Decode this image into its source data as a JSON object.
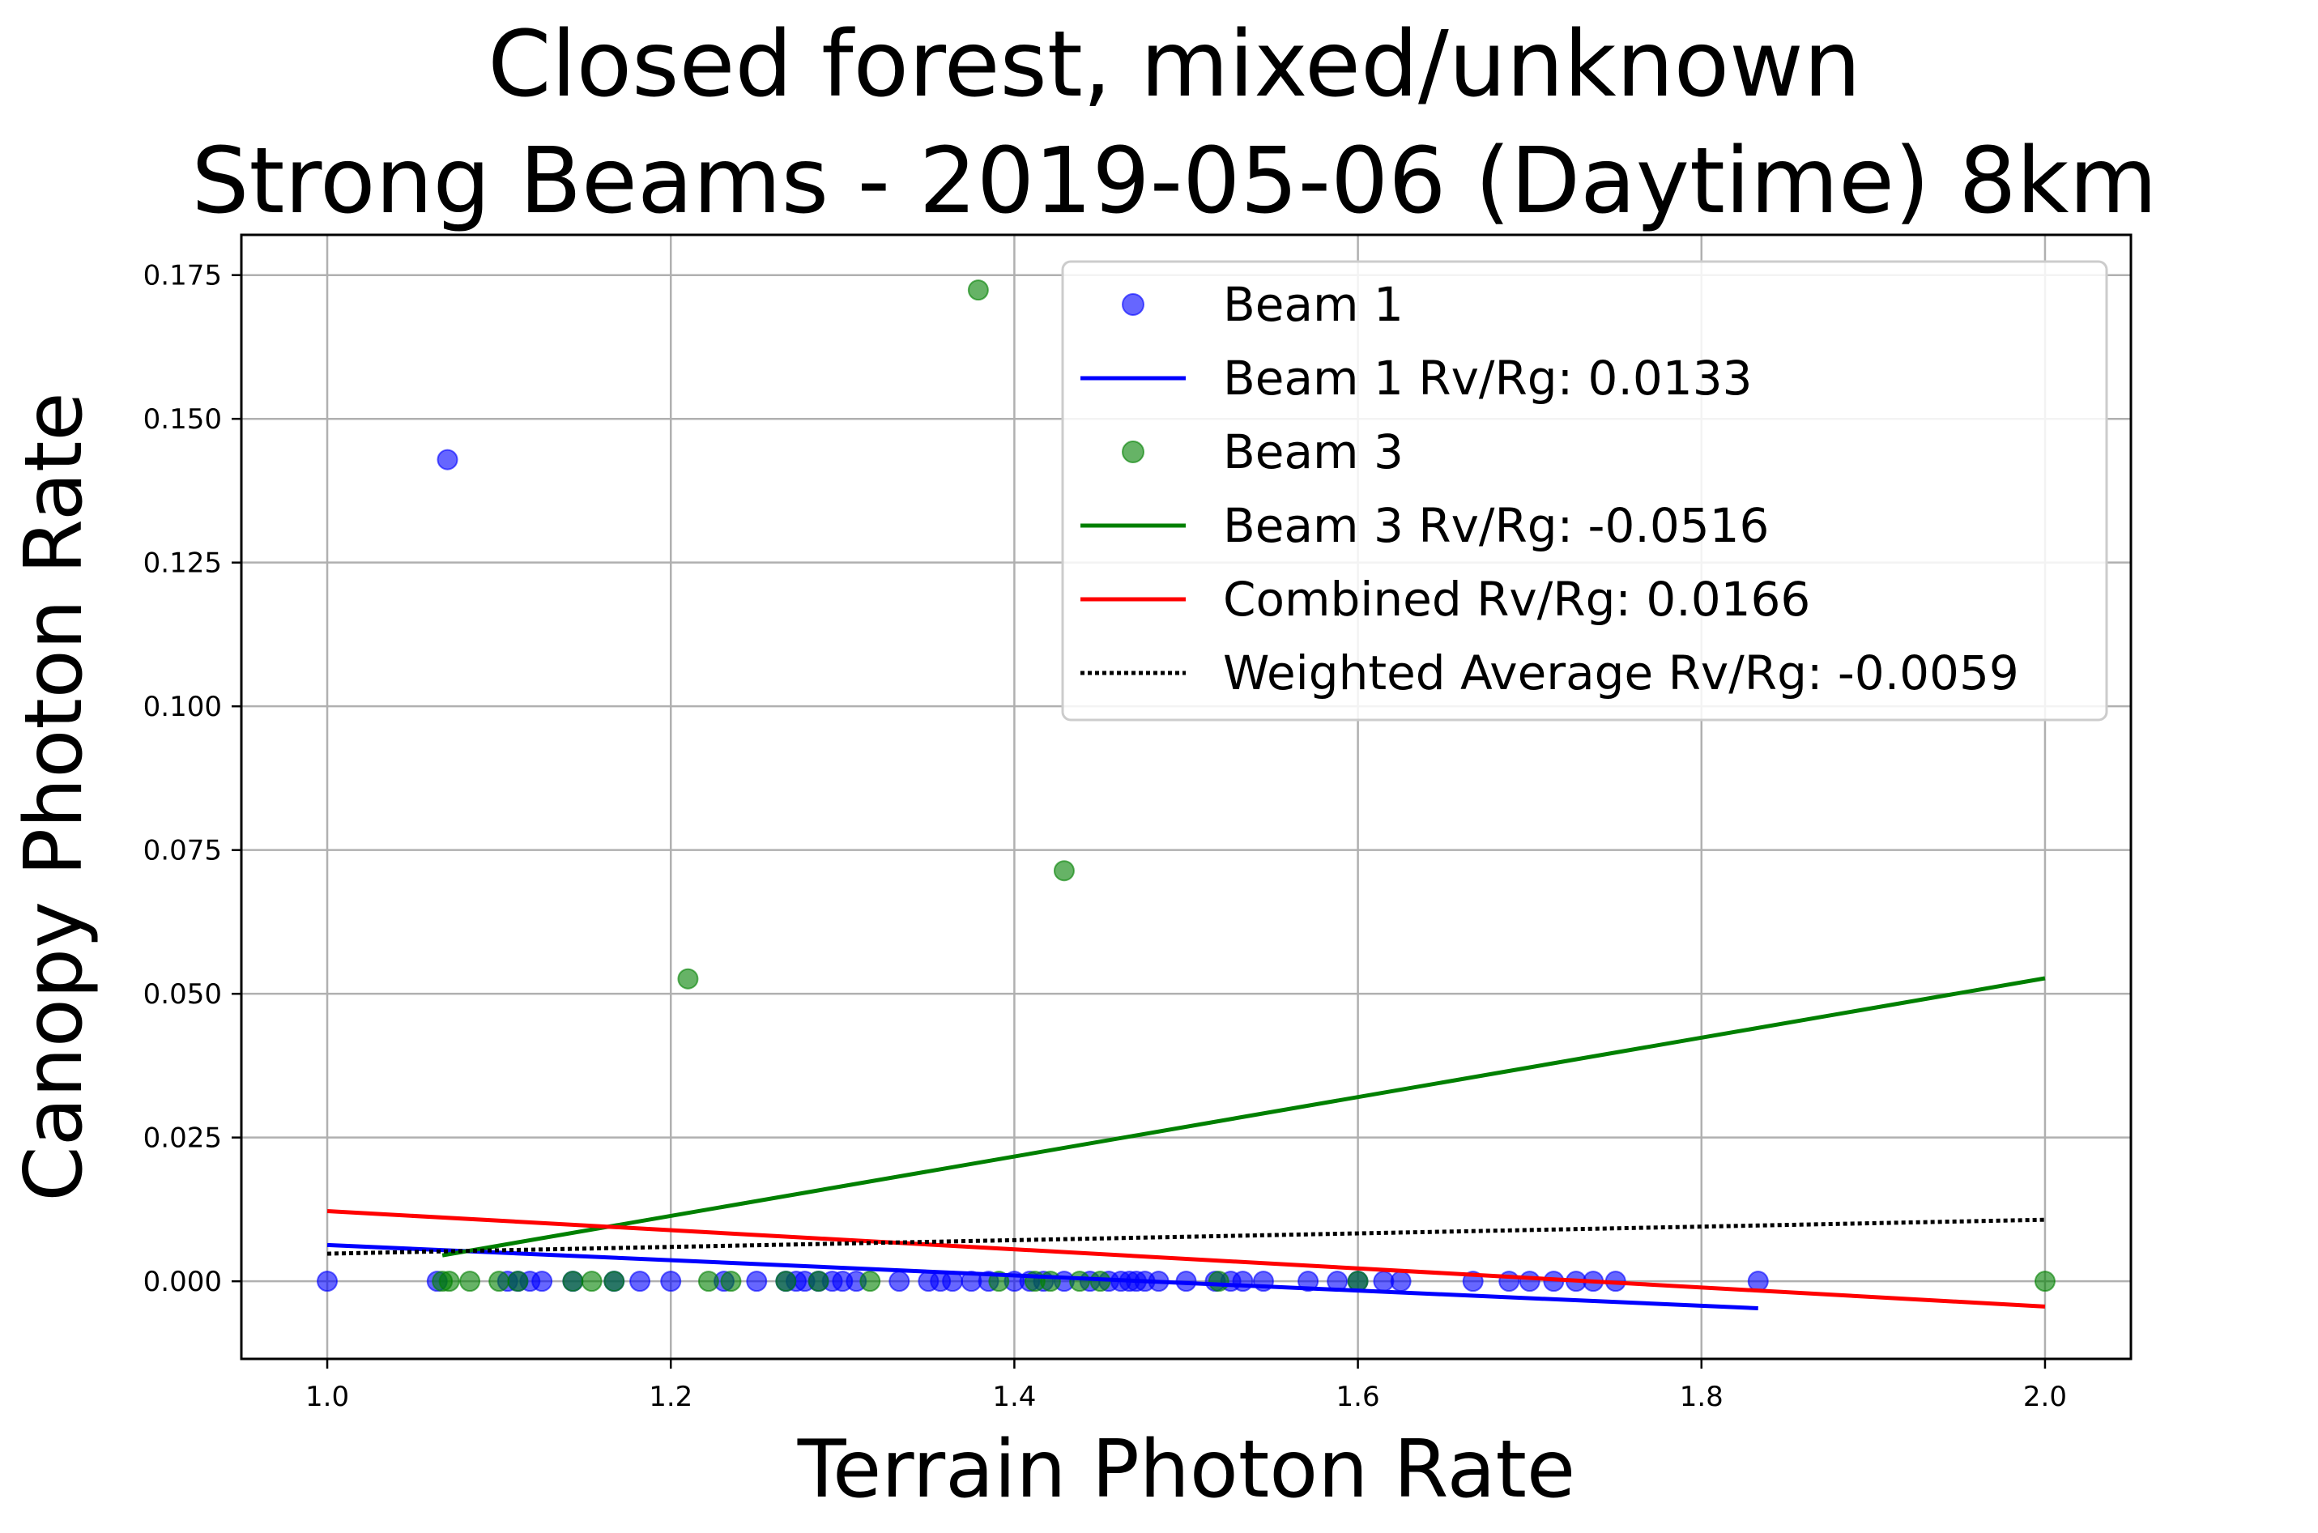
{
  "chart_data": {
    "type": "scatter",
    "title_lines": [
      "Closed forest, mixed/unknown",
      "Strong Beams - 2019-05-06 (Daytime) 8km"
    ],
    "xlabel": "Terrain Photon Rate",
    "ylabel": "Canopy Photon Rate",
    "xlim": [
      0.95,
      2.05
    ],
    "ylim": [
      -0.0135,
      0.182
    ],
    "xticks": [
      1.0,
      1.2,
      1.4,
      1.6,
      1.8,
      2.0
    ],
    "xtick_labels": [
      "1.0",
      "1.2",
      "1.4",
      "1.6",
      "1.8",
      "2.0"
    ],
    "yticks": [
      0.0,
      0.025,
      0.05,
      0.075,
      0.1,
      0.125,
      0.15,
      0.175
    ],
    "ytick_labels": [
      "0.000",
      "0.025",
      "0.050",
      "0.075",
      "0.100",
      "0.125",
      "0.150",
      "0.175"
    ],
    "grid": true,
    "legend_position": "top-right",
    "series": [
      {
        "kind": "scatter",
        "name": "Beam 1",
        "color": "#0000ff",
        "points": [
          [
            1.0,
            0.0
          ],
          [
            1.064,
            0.0
          ],
          [
            1.07,
            0.1429
          ],
          [
            1.105,
            0.0
          ],
          [
            1.111,
            0.0
          ],
          [
            1.118,
            0.0
          ],
          [
            1.125,
            0.0
          ],
          [
            1.143,
            0.0
          ],
          [
            1.167,
            0.0
          ],
          [
            1.182,
            0.0
          ],
          [
            1.2,
            0.0
          ],
          [
            1.231,
            0.0
          ],
          [
            1.25,
            0.0
          ],
          [
            1.267,
            0.0
          ],
          [
            1.273,
            0.0
          ],
          [
            1.278,
            0.0
          ],
          [
            1.286,
            0.0
          ],
          [
            1.294,
            0.0
          ],
          [
            1.3,
            0.0
          ],
          [
            1.308,
            0.0
          ],
          [
            1.333,
            0.0
          ],
          [
            1.35,
            0.0
          ],
          [
            1.357,
            0.0
          ],
          [
            1.364,
            0.0
          ],
          [
            1.375,
            0.0
          ],
          [
            1.385,
            0.0
          ],
          [
            1.4,
            0.0
          ],
          [
            1.409,
            0.0
          ],
          [
            1.417,
            0.0
          ],
          [
            1.429,
            0.0
          ],
          [
            1.444,
            0.0
          ],
          [
            1.455,
            0.0
          ],
          [
            1.462,
            0.0
          ],
          [
            1.467,
            0.0
          ],
          [
            1.471,
            0.0
          ],
          [
            1.476,
            0.0
          ],
          [
            1.484,
            0.0
          ],
          [
            1.5,
            0.0
          ],
          [
            1.517,
            0.0
          ],
          [
            1.526,
            0.0
          ],
          [
            1.533,
            0.0
          ],
          [
            1.545,
            0.0
          ],
          [
            1.571,
            0.0
          ],
          [
            1.588,
            0.0
          ],
          [
            1.6,
            0.0
          ],
          [
            1.615,
            0.0
          ],
          [
            1.625,
            0.0
          ],
          [
            1.667,
            0.0
          ],
          [
            1.688,
            0.0
          ],
          [
            1.7,
            0.0
          ],
          [
            1.714,
            0.0
          ],
          [
            1.727,
            0.0
          ],
          [
            1.737,
            0.0
          ],
          [
            1.75,
            0.0
          ],
          [
            1.833,
            0.0
          ]
        ]
      },
      {
        "kind": "line",
        "name": "Beam 1 Rv/Rg: 0.0133",
        "color": "#0000ff",
        "dash": "solid",
        "points": [
          [
            1.0,
            0.0063
          ],
          [
            1.833,
            -0.0047
          ]
        ]
      },
      {
        "kind": "scatter",
        "name": "Beam 3",
        "color": "#008000",
        "points": [
          [
            1.067,
            0.0
          ],
          [
            1.071,
            0.0
          ],
          [
            1.083,
            0.0
          ],
          [
            1.1,
            0.0
          ],
          [
            1.111,
            0.0
          ],
          [
            1.143,
            0.0
          ],
          [
            1.154,
            0.0
          ],
          [
            1.167,
            0.0
          ],
          [
            1.21,
            0.0526
          ],
          [
            1.222,
            0.0
          ],
          [
            1.235,
            0.0
          ],
          [
            1.267,
            0.0
          ],
          [
            1.286,
            0.0
          ],
          [
            1.316,
            0.0
          ],
          [
            1.379,
            0.1724
          ],
          [
            1.391,
            0.0
          ],
          [
            1.412,
            0.0
          ],
          [
            1.421,
            0.0
          ],
          [
            1.429,
            0.0714
          ],
          [
            1.438,
            0.0
          ],
          [
            1.45,
            0.0
          ],
          [
            1.519,
            0.0
          ],
          [
            1.6,
            0.0
          ],
          [
            2.0,
            0.0
          ]
        ]
      },
      {
        "kind": "line",
        "name": "Beam 3 Rv/Rg: -0.0516",
        "color": "#008000",
        "dash": "solid",
        "points": [
          [
            1.067,
            0.0045
          ],
          [
            2.0,
            0.0527
          ]
        ]
      },
      {
        "kind": "line",
        "name": "Combined Rv/Rg: 0.0166",
        "color": "#ff0000",
        "dash": "solid",
        "points": [
          [
            1.0,
            0.0122
          ],
          [
            2.0,
            -0.0044
          ]
        ]
      },
      {
        "kind": "line",
        "name": "Weighted Average Rv/Rg: -0.0059",
        "color": "#000000",
        "dash": "dotted",
        "points": [
          [
            1.0,
            0.0048
          ],
          [
            1.833,
            0.0097
          ],
          [
            2.0,
            0.0107
          ]
        ]
      }
    ]
  }
}
